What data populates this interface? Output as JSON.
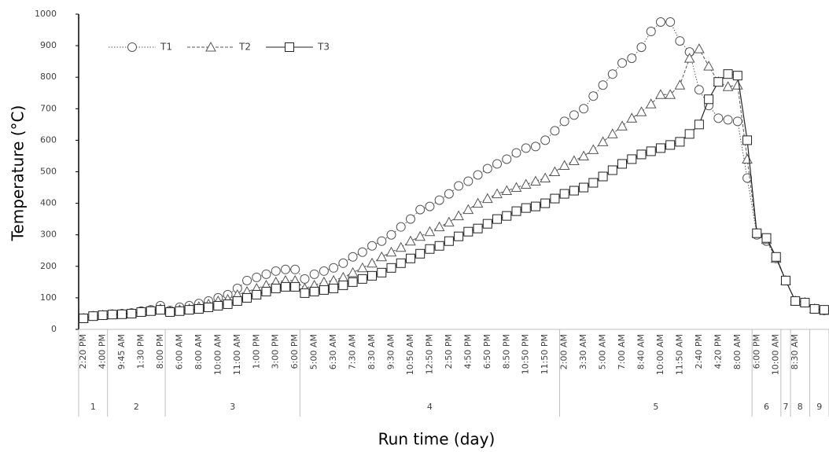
{
  "chart_data": {
    "type": "line",
    "x_title": "Run time (day)",
    "y_title": "Temperature (°C)",
    "categories": [
      "2:20 PM",
      null,
      "4:00 PM",
      null,
      "9:45 AM",
      null,
      "1:30 PM",
      null,
      "8:00 PM",
      null,
      "6:00 AM",
      null,
      "8:00 AM",
      null,
      "10:00 AM",
      null,
      "11:00 AM",
      null,
      "1:00 PM",
      null,
      "3:00 PM",
      null,
      "6:00 PM",
      null,
      "5:00 AM",
      null,
      "6:30 AM",
      null,
      "7:30 AM",
      null,
      "8:30 AM",
      null,
      "9:30 AM",
      null,
      "10:50 AM",
      null,
      "12:50 PM",
      null,
      "2:50 PM",
      null,
      "4:50 PM",
      null,
      "6:50 PM",
      null,
      "8:50 PM",
      null,
      "10:50 PM",
      null,
      "11:50 PM",
      null,
      "2:00 AM",
      null,
      "3:30 AM",
      null,
      "5:00 AM",
      null,
      "7:00 AM",
      null,
      "8:40 AM",
      null,
      "10:00 AM",
      null,
      "11:50 AM",
      null,
      "2:40 PM",
      null,
      "4:20 PM",
      null,
      "8:00 AM",
      null,
      "6:00 PM",
      null,
      "10:00 AM",
      null,
      "8:30 AM",
      null,
      null,
      null
    ],
    "groups": [
      {
        "label": "1",
        "count": 3
      },
      {
        "label": "2",
        "count": 6
      },
      {
        "label": "3",
        "count": 14
      },
      {
        "label": "4",
        "count": 27
      },
      {
        "label": "5",
        "count": 20
      },
      {
        "label": "6",
        "count": 3
      },
      {
        "label": "7",
        "count": 1
      },
      {
        "label": "8",
        "count": 2
      },
      {
        "label": "9",
        "count": 2
      }
    ],
    "series": [
      {
        "name": "T1",
        "color": "#555555",
        "marker": "circle",
        "dash": "dotted",
        "values": [
          35,
          42,
          45,
          48,
          50,
          52,
          58,
          62,
          75,
          60,
          70,
          75,
          82,
          90,
          100,
          110,
          130,
          155,
          165,
          175,
          185,
          190,
          190,
          160,
          175,
          185,
          195,
          210,
          230,
          245,
          265,
          280,
          300,
          325,
          350,
          380,
          390,
          410,
          430,
          455,
          470,
          490,
          510,
          525,
          540,
          560,
          575,
          580,
          600,
          630,
          660,
          680,
          700,
          740,
          775,
          810,
          845,
          860,
          895,
          945,
          975,
          975,
          915,
          880,
          760,
          710,
          670,
          665,
          660,
          480,
          300,
          280,
          225,
          155,
          90,
          85,
          65,
          60
        ]
      },
      {
        "name": "T2",
        "color": "#555555",
        "marker": "triangle",
        "dash": "dashed",
        "values": [
          35,
          42,
          45,
          47,
          48,
          50,
          55,
          58,
          65,
          58,
          62,
          65,
          72,
          80,
          90,
          95,
          110,
          120,
          130,
          140,
          150,
          155,
          155,
          130,
          140,
          150,
          155,
          165,
          180,
          195,
          210,
          230,
          245,
          260,
          280,
          295,
          310,
          325,
          340,
          360,
          380,
          400,
          415,
          430,
          440,
          450,
          460,
          470,
          480,
          500,
          520,
          535,
          550,
          570,
          595,
          620,
          645,
          670,
          690,
          715,
          745,
          745,
          775,
          860,
          890,
          835,
          785,
          770,
          775,
          540,
          305,
          285,
          225,
          155,
          90,
          85,
          65,
          60
        ]
      },
      {
        "name": "T3",
        "color": "#222222",
        "marker": "square",
        "dash": "solid",
        "values": [
          35,
          42,
          45,
          47,
          48,
          50,
          55,
          58,
          62,
          55,
          58,
          62,
          65,
          70,
          75,
          80,
          90,
          100,
          110,
          120,
          130,
          135,
          135,
          115,
          120,
          125,
          130,
          140,
          150,
          160,
          170,
          180,
          195,
          210,
          225,
          240,
          255,
          265,
          280,
          295,
          310,
          320,
          335,
          350,
          360,
          375,
          385,
          390,
          400,
          415,
          430,
          440,
          450,
          465,
          485,
          505,
          525,
          540,
          555,
          565,
          575,
          585,
          595,
          620,
          650,
          730,
          785,
          810,
          805,
          600,
          305,
          290,
          230,
          155,
          90,
          85,
          65,
          62
        ]
      }
    ],
    "ylim": [
      0,
      1000
    ],
    "yticks": [
      0,
      100,
      200,
      300,
      400,
      500,
      600,
      700,
      800,
      900,
      1000
    ],
    "grid": false,
    "legend": "top-left"
  }
}
